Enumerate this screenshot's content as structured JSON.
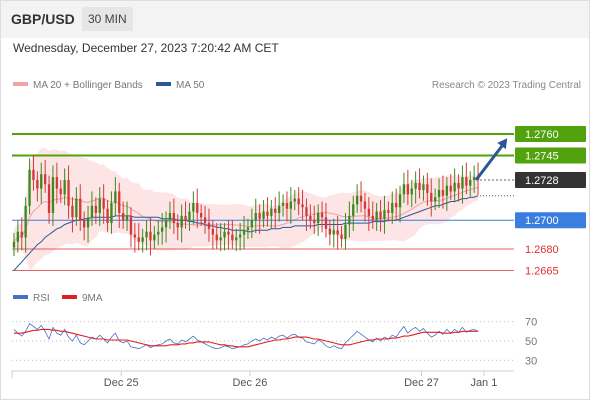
{
  "header": {
    "pair": "GBP/USD",
    "timeframe": "30 MIN"
  },
  "date_line": "Wednesday, December 27, 2023 7:20:42 AM CET",
  "legend": {
    "bollinger": "MA 20 + Bollinger Bands",
    "ma50": "MA 50",
    "rsi": "RSI",
    "rsi_ma": "9MA"
  },
  "credit": "Research © 2023 Trading Central",
  "colors": {
    "green": "#52a20e",
    "blue": "#3a7ee0",
    "red": "#e03030",
    "dark": "#333333",
    "band": "#fde0e0",
    "ma50": "#2b5797"
  },
  "chart_data": [
    {
      "type": "candlestick",
      "title": "GBP/USD 30 MIN",
      "xlim": [
        0,
        120
      ],
      "ylim": [
        1.2657,
        1.2785
      ],
      "x_ticks": [
        {
          "x": 28,
          "label": "Dec 25"
        },
        {
          "x": 61,
          "label": "Dec 26"
        },
        {
          "x": 105,
          "label": "Dec 27"
        },
        {
          "x": 121,
          "label": "Jan 1"
        }
      ],
      "last_price": 1.2728,
      "levels": [
        {
          "value": 1.276,
          "label": "1.2760",
          "kind": "resistance",
          "color": "#52a20e",
          "box": true
        },
        {
          "value": 1.2745,
          "label": "1.2745",
          "kind": "resistance",
          "color": "#52a20e",
          "box": true
        },
        {
          "value": 1.2728,
          "label": "1.2728",
          "kind": "last",
          "color": "#333333",
          "box": true
        },
        {
          "value": 1.27,
          "label": "1.2700",
          "kind": "pivot",
          "color": "#3a7ee0",
          "box": true
        },
        {
          "value": 1.268,
          "label": "1.2680",
          "kind": "support",
          "color": "#e03030",
          "box": false
        },
        {
          "value": 1.2665,
          "label": "1.2665",
          "kind": "support",
          "color": "#e03030",
          "box": false
        }
      ],
      "arrow": {
        "from": [
          119,
          1.2728
        ],
        "to": [
          127,
          1.2757
        ]
      },
      "closes": [
        1.2685,
        1.2692,
        1.2688,
        1.271,
        1.2735,
        1.2728,
        1.2722,
        1.2732,
        1.2725,
        1.2705,
        1.273,
        1.2722,
        1.2718,
        1.2728,
        1.271,
        1.2702,
        1.2715,
        1.27,
        1.2695,
        1.2702,
        1.271,
        1.2705,
        1.2715,
        1.2708,
        1.2698,
        1.2712,
        1.272,
        1.2705,
        1.27,
        1.2703,
        1.269,
        1.2688,
        1.2685,
        1.2688,
        1.2692,
        1.2686,
        1.269,
        1.2692,
        1.2695,
        1.27,
        1.2705,
        1.2698,
        1.2695,
        1.2703,
        1.27,
        1.2706,
        1.2712,
        1.2705,
        1.2702,
        1.2698,
        1.2694,
        1.269,
        1.2686,
        1.2688,
        1.2692,
        1.269,
        1.2686,
        1.2688,
        1.269,
        1.2693,
        1.2695,
        1.27,
        1.2705,
        1.2701,
        1.2706,
        1.2703,
        1.2708,
        1.2705,
        1.271,
        1.2712,
        1.2708,
        1.2713,
        1.2715,
        1.2711,
        1.2709,
        1.2703,
        1.27,
        1.2698,
        1.2705,
        1.2702,
        1.2694,
        1.269,
        1.2693,
        1.269,
        1.2687,
        1.2697,
        1.2703,
        1.2711,
        1.2717,
        1.2713,
        1.2708,
        1.2703,
        1.27,
        1.2706,
        1.2701,
        1.2707,
        1.2705,
        1.2712,
        1.2709,
        1.2718,
        1.2725,
        1.2718,
        1.2722,
        1.2726,
        1.2721,
        1.2725,
        1.2719,
        1.2713,
        1.2716,
        1.2721,
        1.2717,
        1.2724,
        1.272,
        1.2726,
        1.2722,
        1.273,
        1.2724,
        1.2728,
        1.273,
        1.2728
      ],
      "ma50": [
        1.2665,
        1.2668,
        1.2671,
        1.2674,
        1.2677,
        1.268,
        1.2683,
        1.2685,
        1.2688,
        1.269,
        1.2692,
        1.2694,
        1.2695,
        1.2697,
        1.2698,
        1.2699,
        1.27,
        1.27,
        1.2701,
        1.2701,
        1.2702,
        1.2702,
        1.2702,
        1.2702,
        1.2702,
        1.2702,
        1.2703,
        1.2703,
        1.2703,
        1.2703,
        1.2703,
        1.2702,
        1.2702,
        1.2702,
        1.2702,
        1.2702,
        1.2702,
        1.2702,
        1.2701,
        1.2701,
        1.2701,
        1.2701,
        1.27,
        1.27,
        1.27,
        1.2699,
        1.2699,
        1.2698,
        1.2698,
        1.2697,
        1.2696,
        1.2696,
        1.2695,
        1.2695,
        1.2694,
        1.2694,
        1.2693,
        1.2693,
        1.2693,
        1.2693,
        1.2692,
        1.2692,
        1.2693,
        1.2693,
        1.2693,
        1.2693,
        1.2694,
        1.2694,
        1.2694,
        1.2695,
        1.2695,
        1.2695,
        1.2696,
        1.2696,
        1.2696,
        1.2696,
        1.2696,
        1.2696,
        1.2697,
        1.2697,
        1.2697,
        1.2697,
        1.2697,
        1.2697,
        1.2697,
        1.2698,
        1.2698,
        1.2698,
        1.2698,
        1.2698,
        1.2698,
        1.2698,
        1.2699,
        1.2699,
        1.2699,
        1.2699,
        1.27,
        1.27,
        1.27,
        1.2701,
        1.2702,
        1.2703,
        1.2704,
        1.2705,
        1.2706,
        1.2707,
        1.2708,
        1.2709,
        1.271,
        1.271,
        1.2711,
        1.2712,
        1.2713,
        1.2713,
        1.2714,
        1.2715,
        1.2715,
        1.2716,
        1.2716,
        1.2717
      ]
    },
    {
      "type": "line",
      "title": "RSI",
      "ylim": [
        22,
        80
      ],
      "y_ticks": [
        70,
        50,
        30
      ],
      "hlines": [
        70,
        50,
        30
      ],
      "series": [
        {
          "name": "RSI",
          "color": "#4472c4",
          "values": [
            62,
            58,
            55,
            60,
            68,
            65,
            62,
            66,
            60,
            52,
            64,
            58,
            56,
            62,
            54,
            50,
            56,
            48,
            46,
            50,
            54,
            52,
            56,
            52,
            48,
            54,
            58,
            50,
            48,
            50,
            44,
            43,
            42,
            44,
            46,
            43,
            45,
            46,
            47,
            50,
            52,
            48,
            47,
            51,
            49,
            52,
            55,
            51,
            49,
            47,
            45,
            43,
            42,
            43,
            45,
            44,
            42,
            43,
            44,
            46,
            47,
            50,
            52,
            50,
            53,
            51,
            54,
            52,
            55,
            56,
            53,
            56,
            57,
            54,
            53,
            49,
            48,
            47,
            51,
            49,
            45,
            43,
            45,
            43,
            42,
            48,
            52,
            56,
            60,
            57,
            54,
            51,
            49,
            53,
            50,
            54,
            52,
            56,
            54,
            60,
            65,
            58,
            62,
            64,
            60,
            63,
            58,
            54,
            56,
            60,
            57,
            62,
            58,
            62,
            59,
            64,
            59,
            61,
            62,
            60
          ]
        },
        {
          "name": "9MA",
          "color": "#e02020",
          "values": [
            58,
            58,
            58,
            59,
            60,
            61,
            61,
            62,
            62,
            62,
            61,
            61,
            60,
            60,
            59,
            58,
            57,
            56,
            55,
            54,
            53,
            52,
            52,
            52,
            51,
            51,
            51,
            51,
            51,
            51,
            50,
            49,
            48,
            47,
            46,
            45,
            45,
            45,
            45,
            45,
            46,
            46,
            46,
            47,
            47,
            48,
            48,
            49,
            49,
            49,
            49,
            48,
            47,
            46,
            46,
            45,
            45,
            44,
            44,
            44,
            44,
            45,
            46,
            47,
            48,
            49,
            50,
            51,
            51,
            52,
            52,
            53,
            54,
            54,
            54,
            54,
            53,
            52,
            52,
            51,
            50,
            49,
            48,
            47,
            46,
            46,
            46,
            47,
            48,
            49,
            50,
            51,
            51,
            52,
            52,
            52,
            52,
            53,
            53,
            54,
            55,
            55,
            56,
            57,
            58,
            59,
            59,
            59,
            59,
            59,
            58,
            58,
            58,
            59,
            59,
            60,
            60,
            60,
            60,
            60
          ]
        }
      ]
    }
  ]
}
